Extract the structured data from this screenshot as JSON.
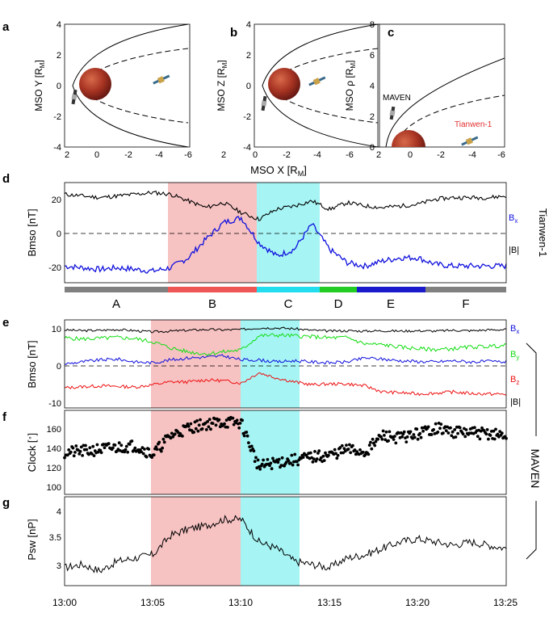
{
  "figure": {
    "orbit_panels": [
      {
        "letter": "a",
        "ylabel": "MSO Y [R",
        "ylabel_sub": "M",
        "yticks": [
          "4",
          "2",
          "0",
          "-2",
          "-4"
        ],
        "xticks": [
          "2",
          "0",
          "-2",
          "-4",
          "-6"
        ]
      },
      {
        "letter": "b",
        "ylabel": "MSO Z [R",
        "ylabel_sub": "M",
        "yticks": [
          "4",
          "2",
          "0",
          "-2",
          "-4"
        ],
        "xticks": [
          "2",
          "0",
          "-2",
          "-4",
          "-6"
        ]
      },
      {
        "letter": "c",
        "ylabel": "MSO ρ [R",
        "ylabel_sub": "M",
        "yticks": [
          "8",
          "6",
          "4",
          "2",
          "0"
        ],
        "xticks": [
          "2",
          "0",
          "-2",
          "-4",
          "-6"
        ],
        "maven_label": "MAVEN",
        "tianwen_label": "Tianwen-1"
      }
    ],
    "orbit_xlabel": "MSO X [R",
    "orbit_xlabel_sub": "M",
    "d_letter": "d",
    "d_ylabel": "Bmso [nT]",
    "d_yticks": [
      "20",
      "0",
      "-20"
    ],
    "d_legend": {
      "bx": "B",
      "bx_sub": "x",
      "b": "|B|"
    },
    "d_side_label": "Tianwen-1",
    "regions": [
      {
        "label": "A",
        "color": "#808080"
      },
      {
        "label": "B",
        "color": "#ee5555"
      },
      {
        "label": "C",
        "color": "#22ddee"
      },
      {
        "label": "D",
        "color": "#22cc22"
      },
      {
        "label": "E",
        "color": "#1a1acc"
      },
      {
        "label": "F",
        "color": "#808080"
      }
    ],
    "e_letter": "e",
    "e_ylabel": "Bmso [nT]",
    "e_yticks": [
      "10",
      "0",
      "-10"
    ],
    "e_legend": {
      "bx": "B",
      "bx_sub": "x",
      "by": "B",
      "by_sub": "y",
      "bz": "B",
      "bz_sub": "z",
      "b": "|B|"
    },
    "f_letter": "f",
    "f_ylabel": "Clock [ ]",
    "f_ylabel_deg": "∘",
    "f_yticks": [
      "160",
      "140",
      "120",
      "100"
    ],
    "g_letter": "g",
    "g_ylabel": "Psw [nP]",
    "g_yticks": [
      "4",
      "3.5",
      "3"
    ],
    "maven_side_label": "MAVEN",
    "time_ticks": [
      "13:00",
      "13:05",
      "13:10",
      "13:15",
      "13:20",
      "13:25"
    ],
    "colors": {
      "red_band": "#f7c2c2",
      "cyan_band": "#a6f4f4",
      "bx": "#1010dd",
      "by": "#11dd11",
      "bz": "#ee1111",
      "b": "#000000",
      "mars": "#b03524"
    }
  },
  "chart_data": [
    {
      "type": "line",
      "panel": "a",
      "title": "",
      "xlabel": "MSO X [RM]",
      "ylabel": "MSO Y [RM]",
      "xlim": [
        2,
        -6
      ],
      "ylim": [
        -4,
        4
      ],
      "series": []
    },
    {
      "type": "line",
      "panel": "b",
      "title": "",
      "xlabel": "MSO X [RM]",
      "ylabel": "MSO Z [RM]",
      "xlim": [
        2,
        -6
      ],
      "ylim": [
        -4,
        4
      ],
      "series": []
    },
    {
      "type": "line",
      "panel": "c",
      "title": "",
      "xlabel": "MSO X [RM]",
      "ylabel": "MSO ρ [RM]",
      "xlim": [
        2,
        -6
      ],
      "ylim": [
        0,
        8
      ],
      "series": []
    },
    {
      "type": "line",
      "panel": "d",
      "title": "",
      "xlabel": "",
      "ylabel": "Bmso [nT]",
      "ylim": [
        -30,
        30
      ],
      "x": [
        "13:00",
        "13:01",
        "13:02",
        "13:03",
        "13:04",
        "13:05",
        "13:06",
        "13:07",
        "13:08",
        "13:09",
        "13:10",
        "13:11",
        "13:12",
        "13:13",
        "13:14",
        "13:15",
        "13:16",
        "13:17",
        "13:18",
        "13:19",
        "13:20",
        "13:21",
        "13:22",
        "13:23",
        "13:24",
        "13:25"
      ],
      "series": [
        {
          "name": "|B|",
          "values": [
            23,
            22,
            21,
            22,
            23,
            24,
            23,
            19,
            15,
            18,
            12,
            8,
            14,
            16,
            19,
            14,
            18,
            16,
            15,
            16,
            17,
            20,
            21,
            21,
            21,
            22
          ]
        },
        {
          "name": "Bx",
          "values": [
            -20,
            -21,
            -22,
            -21,
            -22,
            -23,
            -21,
            -15,
            -4,
            6,
            9,
            -6,
            -14,
            -10,
            5,
            -10,
            -18,
            -20,
            -17,
            -15,
            -15,
            -19,
            -20,
            -20,
            -20,
            -20
          ]
        }
      ]
    },
    {
      "type": "line",
      "panel": "e",
      "title": "",
      "xlabel": "",
      "ylabel": "Bmso [nT]",
      "ylim": [
        -11,
        11
      ],
      "x": [
        "13:00",
        "13:01",
        "13:02",
        "13:03",
        "13:04",
        "13:05",
        "13:06",
        "13:07",
        "13:08",
        "13:09",
        "13:10",
        "13:11",
        "13:12",
        "13:13",
        "13:14",
        "13:15",
        "13:16",
        "13:17",
        "13:18",
        "13:19",
        "13:20",
        "13:21",
        "13:22",
        "13:23",
        "13:24",
        "13:25"
      ],
      "series": [
        {
          "name": "|B|",
          "values": [
            8.5,
            8.3,
            8.4,
            8.6,
            8.3,
            8.0,
            8.2,
            8.4,
            8.6,
            8.5,
            8.6,
            9.0,
            9.0,
            8.8,
            8.4,
            8.2,
            8.3,
            8.2,
            8.3,
            8.2,
            8.3,
            8.2,
            8.4,
            8.3,
            8.5,
            8.6
          ]
        },
        {
          "name": "By",
          "values": [
            6.5,
            6.2,
            6.4,
            6.6,
            6.3,
            5.5,
            4.0,
            3.0,
            2.5,
            3.0,
            3.5,
            7.0,
            7.2,
            7.0,
            6.8,
            6.5,
            6.6,
            5.0,
            4.8,
            4.2,
            3.8,
            3.6,
            3.8,
            4.2,
            4.4,
            4.6
          ]
        },
        {
          "name": "Bx",
          "values": [
            0,
            0.5,
            1,
            1.2,
            0.5,
            0.3,
            1,
            1.5,
            1.7,
            2,
            1,
            1,
            0.5,
            0.8,
            0.5,
            0.3,
            0.5,
            1.5,
            1.2,
            0.8,
            0.6,
            0.5,
            0.8,
            0.5,
            0.6,
            0.5
          ]
        },
        {
          "name": "Bz",
          "values": [
            -6,
            -5.7,
            -5.5,
            -5.6,
            -5.8,
            -5.2,
            -4.5,
            -4.5,
            -4,
            -4.2,
            -4.8,
            -2.2,
            -3.5,
            -4.5,
            -5.2,
            -5,
            -5,
            -5.5,
            -7,
            -7.2,
            -7.5,
            -7.3,
            -7,
            -7.4,
            -7.5,
            -7.6
          ]
        }
      ]
    },
    {
      "type": "scatter",
      "panel": "f",
      "title": "",
      "xlabel": "",
      "ylabel": "Clock [°]",
      "ylim": [
        92,
        178
      ],
      "x": [
        "13:00",
        "13:01",
        "13:02",
        "13:03",
        "13:04",
        "13:05",
        "13:06",
        "13:07",
        "13:08",
        "13:09",
        "13:10",
        "13:11",
        "13:12",
        "13:13",
        "13:14",
        "13:15",
        "13:16",
        "13:17",
        "13:18",
        "13:19",
        "13:20",
        "13:21",
        "13:22",
        "13:23",
        "13:24",
        "13:25"
      ],
      "series": [
        {
          "name": "",
          "values": [
            135,
            136,
            138,
            140,
            142,
            133,
            152,
            160,
            164,
            166,
            165,
            120,
            125,
            127,
            130,
            132,
            138,
            135,
            152,
            150,
            154,
            160,
            156,
            155,
            154,
            152
          ]
        }
      ]
    },
    {
      "type": "line",
      "panel": "g",
      "title": "",
      "xlabel": "",
      "ylabel": "Psw [nP]",
      "ylim": [
        2.82,
        4.2
      ],
      "x": [
        "13:00",
        "13:01",
        "13:02",
        "13:03",
        "13:04",
        "13:05",
        "13:06",
        "13:07",
        "13:08",
        "13:09",
        "13:10",
        "13:11",
        "13:12",
        "13:13",
        "13:14",
        "13:15",
        "13:16",
        "13:17",
        "13:18",
        "13:19",
        "13:20",
        "13:21",
        "13:22",
        "13:23",
        "13:24",
        "13:25"
      ],
      "series": [
        {
          "name": "",
          "values": [
            3.1,
            3.15,
            3.05,
            3.2,
            3.25,
            3.3,
            3.6,
            3.7,
            3.75,
            3.85,
            3.85,
            3.5,
            3.4,
            3.2,
            3.15,
            3.1,
            3.25,
            3.3,
            3.4,
            3.5,
            3.55,
            3.5,
            3.45,
            3.5,
            3.45,
            3.4
          ]
        }
      ]
    }
  ]
}
